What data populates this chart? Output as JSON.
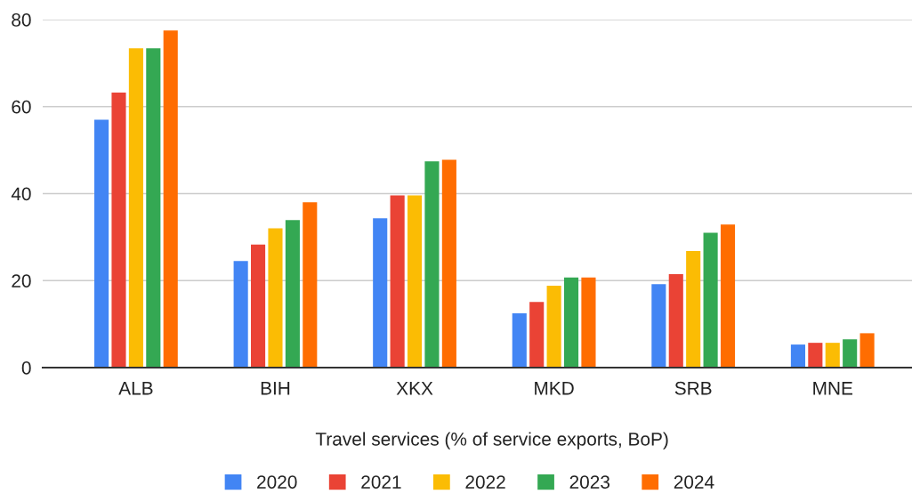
{
  "chart_data": {
    "type": "bar",
    "xlabel": "Travel services (% of service exports, BoP)",
    "categories": [
      "ALB",
      "BIH",
      "XKX",
      "MKD",
      "SRB",
      "MNE"
    ],
    "series": [
      {
        "name": "2020",
        "color": "#4285f4",
        "values": [
          57.0,
          24.5,
          34.3,
          12.5,
          19.2,
          5.3
        ]
      },
      {
        "name": "2021",
        "color": "#ea4335",
        "values": [
          63.2,
          28.3,
          39.6,
          15.1,
          21.5,
          5.7
        ]
      },
      {
        "name": "2022",
        "color": "#fbbc04",
        "values": [
          73.4,
          32.0,
          39.6,
          18.8,
          26.8,
          5.7
        ]
      },
      {
        "name": "2023",
        "color": "#34a853",
        "values": [
          73.4,
          33.9,
          47.4,
          20.7,
          31.0,
          6.5
        ]
      },
      {
        "name": "2024",
        "color": "#ff6d01",
        "values": [
          77.5,
          38.0,
          47.8,
          20.7,
          32.9,
          7.9
        ]
      }
    ],
    "ylim": [
      0,
      80
    ],
    "yticks": [
      0,
      20,
      40,
      60,
      80
    ],
    "grid": "y",
    "legend": "bottom"
  }
}
